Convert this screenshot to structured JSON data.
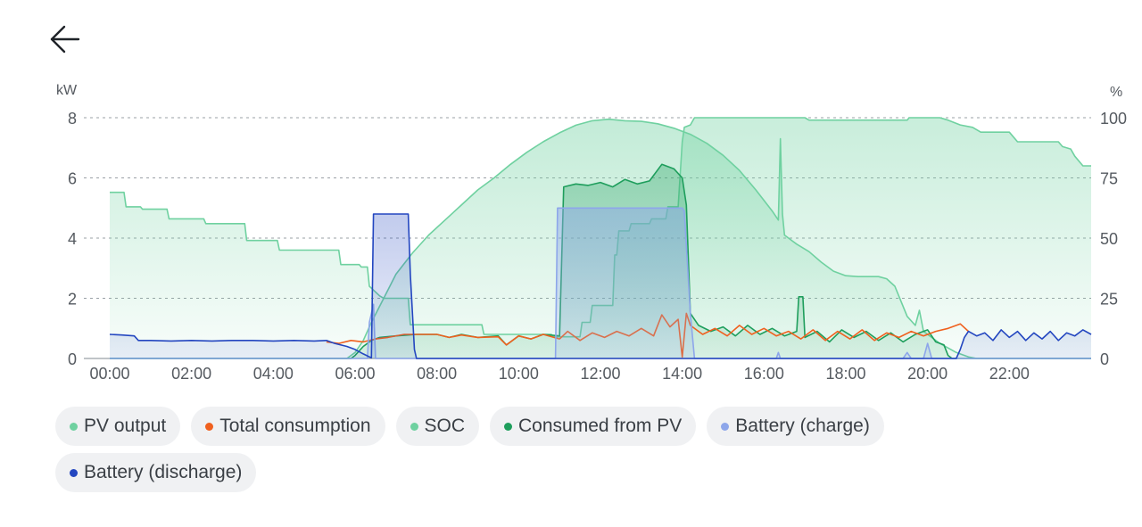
{
  "header": {
    "back_icon": "arrow-left-icon"
  },
  "chart_data": {
    "type": "area",
    "x_unit": "time of day",
    "x_ticks": [
      "00:00",
      "02:00",
      "04:00",
      "06:00",
      "08:00",
      "10:00",
      "12:00",
      "14:00",
      "16:00",
      "18:00",
      "20:00",
      "22:00"
    ],
    "y_left": {
      "unit": "kW",
      "ticks": [
        "0",
        "2",
        "4",
        "6",
        "8"
      ],
      "ylim": [
        0,
        8
      ]
    },
    "y_right": {
      "unit": "%",
      "ticks": [
        "0",
        "25",
        "50",
        "75",
        "100"
      ],
      "ylim": [
        0,
        100
      ]
    },
    "grid": "horizontal dashed",
    "legend_placement": "bottom",
    "series": [
      {
        "name": "SOC",
        "axis": "right",
        "color": "#6fd1a0",
        "style": "area-line",
        "points": [
          [
            0,
            69
          ],
          [
            0.35,
            69
          ],
          [
            0.4,
            63
          ],
          [
            0.75,
            63
          ],
          [
            0.8,
            62
          ],
          [
            1.4,
            62
          ],
          [
            1.45,
            58
          ],
          [
            2.3,
            58
          ],
          [
            2.35,
            56
          ],
          [
            3.3,
            56
          ],
          [
            3.35,
            49
          ],
          [
            4.1,
            49
          ],
          [
            4.15,
            45
          ],
          [
            5.6,
            45
          ],
          [
            5.65,
            39
          ],
          [
            6.1,
            39
          ],
          [
            6.15,
            38
          ],
          [
            6.3,
            38
          ],
          [
            6.35,
            30
          ],
          [
            6.6,
            26
          ],
          [
            6.7,
            25
          ],
          [
            7.3,
            25
          ],
          [
            7.35,
            14
          ],
          [
            9.1,
            14
          ],
          [
            9.15,
            10
          ],
          [
            10.8,
            10
          ],
          [
            10.85,
            9
          ],
          [
            11.5,
            9
          ],
          [
            11.55,
            15
          ],
          [
            11.75,
            15
          ],
          [
            11.8,
            22
          ],
          [
            12.3,
            22
          ],
          [
            12.35,
            43
          ],
          [
            12.4,
            43
          ],
          [
            12.45,
            53
          ],
          [
            12.7,
            53
          ],
          [
            12.75,
            56
          ],
          [
            13.2,
            56
          ],
          [
            13.25,
            58
          ],
          [
            13.6,
            58
          ],
          [
            13.65,
            63
          ],
          [
            13.9,
            63
          ],
          [
            14.0,
            90
          ],
          [
            14.05,
            96
          ],
          [
            14.2,
            97
          ],
          [
            14.3,
            100
          ],
          [
            17.0,
            100
          ],
          [
            17.1,
            99
          ],
          [
            19.5,
            99
          ],
          [
            19.55,
            100
          ],
          [
            20.3,
            100
          ],
          [
            20.5,
            99
          ],
          [
            20.8,
            97
          ],
          [
            21.1,
            96
          ],
          [
            21.3,
            94
          ],
          [
            22.0,
            94
          ],
          [
            22.2,
            90
          ],
          [
            23.2,
            90
          ],
          [
            23.3,
            88
          ],
          [
            23.5,
            87
          ],
          [
            23.6,
            84
          ],
          [
            23.8,
            80
          ],
          [
            24.0,
            80
          ]
        ]
      },
      {
        "name": "PV output",
        "axis": "left",
        "color": "#6fd1a0",
        "style": "area-line",
        "points": [
          [
            0,
            0
          ],
          [
            5.8,
            0
          ],
          [
            6.0,
            0.2
          ],
          [
            6.2,
            0.6
          ],
          [
            6.4,
            1.2
          ],
          [
            6.7,
            2.0
          ],
          [
            7.0,
            2.8
          ],
          [
            7.4,
            3.5
          ],
          [
            7.8,
            4.1
          ],
          [
            8.2,
            4.6
          ],
          [
            8.6,
            5.1
          ],
          [
            9.0,
            5.6
          ],
          [
            9.4,
            6.0
          ],
          [
            9.8,
            6.45
          ],
          [
            10.2,
            6.85
          ],
          [
            10.6,
            7.2
          ],
          [
            11.0,
            7.5
          ],
          [
            11.4,
            7.75
          ],
          [
            11.8,
            7.9
          ],
          [
            12.2,
            7.95
          ],
          [
            12.6,
            7.9
          ],
          [
            13.0,
            7.88
          ],
          [
            13.4,
            7.8
          ],
          [
            13.8,
            7.65
          ],
          [
            14.2,
            7.45
          ],
          [
            14.6,
            7.15
          ],
          [
            15.0,
            6.75
          ],
          [
            15.4,
            6.25
          ],
          [
            15.8,
            5.6
          ],
          [
            16.2,
            4.9
          ],
          [
            16.35,
            4.6
          ],
          [
            16.4,
            7.3
          ],
          [
            16.45,
            4.8
          ],
          [
            16.5,
            4.1
          ],
          [
            16.8,
            3.8
          ],
          [
            17.1,
            3.55
          ],
          [
            17.4,
            3.2
          ],
          [
            17.7,
            2.9
          ],
          [
            18.0,
            2.75
          ],
          [
            18.3,
            2.72
          ],
          [
            18.8,
            2.72
          ],
          [
            19.0,
            2.65
          ],
          [
            19.2,
            2.4
          ],
          [
            19.35,
            1.9
          ],
          [
            19.5,
            1.4
          ],
          [
            19.7,
            1.1
          ],
          [
            19.8,
            1.6
          ],
          [
            19.9,
            0.9
          ],
          [
            20.1,
            0.7
          ],
          [
            20.3,
            0.5
          ],
          [
            20.5,
            0.35
          ],
          [
            20.7,
            0.2
          ],
          [
            21.0,
            0.05
          ],
          [
            21.2,
            0
          ],
          [
            24.0,
            0
          ]
        ]
      },
      {
        "name": "Consumed from PV",
        "axis": "left",
        "color": "#1e9e5c",
        "style": "area-line",
        "points": [
          [
            0,
            0
          ],
          [
            5.9,
            0
          ],
          [
            6.0,
            0.1
          ],
          [
            6.2,
            0.4
          ],
          [
            6.4,
            0.6
          ],
          [
            6.6,
            0.7
          ],
          [
            7.0,
            0.75
          ],
          [
            7.5,
            0.8
          ],
          [
            8.0,
            0.8
          ],
          [
            8.3,
            0.7
          ],
          [
            8.6,
            0.8
          ],
          [
            9.0,
            0.7
          ],
          [
            9.5,
            0.75
          ],
          [
            9.7,
            0.45
          ],
          [
            10.0,
            0.75
          ],
          [
            10.3,
            0.65
          ],
          [
            10.6,
            0.8
          ],
          [
            11.0,
            0.75
          ],
          [
            11.1,
            5.7
          ],
          [
            11.4,
            5.8
          ],
          [
            11.7,
            5.75
          ],
          [
            12.0,
            5.85
          ],
          [
            12.3,
            5.7
          ],
          [
            12.6,
            5.95
          ],
          [
            12.9,
            5.8
          ],
          [
            13.2,
            5.9
          ],
          [
            13.5,
            6.45
          ],
          [
            13.8,
            6.3
          ],
          [
            14.0,
            6.0
          ],
          [
            14.1,
            5.1
          ],
          [
            14.2,
            1.5
          ],
          [
            14.4,
            1.1
          ],
          [
            14.7,
            0.9
          ],
          [
            15.0,
            1.05
          ],
          [
            15.3,
            0.75
          ],
          [
            15.6,
            1.1
          ],
          [
            15.9,
            0.8
          ],
          [
            16.2,
            1.0
          ],
          [
            16.5,
            0.75
          ],
          [
            16.8,
            0.9
          ],
          [
            16.85,
            2.05
          ],
          [
            16.95,
            2.05
          ],
          [
            17.0,
            0.7
          ],
          [
            17.3,
            0.9
          ],
          [
            17.6,
            0.55
          ],
          [
            17.9,
            0.95
          ],
          [
            18.2,
            0.7
          ],
          [
            18.5,
            0.9
          ],
          [
            18.8,
            0.6
          ],
          [
            19.1,
            0.85
          ],
          [
            19.4,
            0.55
          ],
          [
            19.7,
            0.8
          ],
          [
            20.0,
            0.95
          ],
          [
            20.2,
            0.55
          ],
          [
            20.4,
            0.45
          ],
          [
            20.5,
            0.1
          ],
          [
            20.6,
            0
          ],
          [
            24.0,
            0
          ]
        ]
      },
      {
        "name": "Total consumption",
        "axis": "left",
        "color": "#f0601e",
        "style": "line",
        "points": [
          [
            5.3,
            0.55
          ],
          [
            5.6,
            0.5
          ],
          [
            5.9,
            0.6
          ],
          [
            6.2,
            0.55
          ],
          [
            6.5,
            0.65
          ],
          [
            6.8,
            0.7
          ],
          [
            7.2,
            0.8
          ],
          [
            7.6,
            0.8
          ],
          [
            8.0,
            0.8
          ],
          [
            8.3,
            0.7
          ],
          [
            8.6,
            0.78
          ],
          [
            9.0,
            0.7
          ],
          [
            9.5,
            0.72
          ],
          [
            9.7,
            0.45
          ],
          [
            10.0,
            0.75
          ],
          [
            10.3,
            0.65
          ],
          [
            10.6,
            0.8
          ],
          [
            11.0,
            0.65
          ],
          [
            11.2,
            0.9
          ],
          [
            11.5,
            0.6
          ],
          [
            11.8,
            0.85
          ],
          [
            12.1,
            0.7
          ],
          [
            12.4,
            0.9
          ],
          [
            12.7,
            0.75
          ],
          [
            13.0,
            1.0
          ],
          [
            13.3,
            0.75
          ],
          [
            13.5,
            1.45
          ],
          [
            13.7,
            1.05
          ],
          [
            13.9,
            1.3
          ],
          [
            14.0,
            0.05
          ],
          [
            14.1,
            1.5
          ],
          [
            14.2,
            1.1
          ],
          [
            14.5,
            0.8
          ],
          [
            14.8,
            1.0
          ],
          [
            15.1,
            0.75
          ],
          [
            15.4,
            1.1
          ],
          [
            15.7,
            0.8
          ],
          [
            16.0,
            1.0
          ],
          [
            16.3,
            0.75
          ],
          [
            16.6,
            0.9
          ],
          [
            16.9,
            0.65
          ],
          [
            17.2,
            0.95
          ],
          [
            17.5,
            0.6
          ],
          [
            17.8,
            0.9
          ],
          [
            18.1,
            0.65
          ],
          [
            18.4,
            0.95
          ],
          [
            18.7,
            0.6
          ],
          [
            19.0,
            0.85
          ],
          [
            19.3,
            0.7
          ],
          [
            19.6,
            0.9
          ],
          [
            19.9,
            0.75
          ],
          [
            20.2,
            0.9
          ],
          [
            20.5,
            1.0
          ],
          [
            20.8,
            1.15
          ],
          [
            21.0,
            0.9
          ]
        ]
      },
      {
        "name": "Battery (charge)",
        "axis": "left",
        "color": "#8da6ea",
        "style": "area-line",
        "points": [
          [
            0,
            0
          ],
          [
            6.3,
            0
          ],
          [
            6.35,
            1.2
          ],
          [
            6.45,
            1.8
          ],
          [
            6.5,
            0
          ],
          [
            10.9,
            0
          ],
          [
            10.95,
            5.0
          ],
          [
            14.0,
            5.0
          ],
          [
            14.05,
            4.9
          ],
          [
            14.2,
            1.5
          ],
          [
            14.3,
            0
          ],
          [
            16.3,
            0
          ],
          [
            16.35,
            0.2
          ],
          [
            16.4,
            0
          ],
          [
            19.4,
            0
          ],
          [
            19.5,
            0.2
          ],
          [
            19.6,
            0
          ],
          [
            19.9,
            0
          ],
          [
            20.0,
            0.5
          ],
          [
            20.1,
            0
          ],
          [
            24.0,
            0
          ]
        ]
      },
      {
        "name": "Battery (discharge)",
        "axis": "left",
        "color": "#2346c0",
        "style": "area-line",
        "points": [
          [
            0,
            0.8
          ],
          [
            0.3,
            0.78
          ],
          [
            0.6,
            0.75
          ],
          [
            0.7,
            0.6
          ],
          [
            1.0,
            0.6
          ],
          [
            1.5,
            0.58
          ],
          [
            2.0,
            0.6
          ],
          [
            2.5,
            0.58
          ],
          [
            3.0,
            0.6
          ],
          [
            3.5,
            0.6
          ],
          [
            4.0,
            0.58
          ],
          [
            4.5,
            0.6
          ],
          [
            5.0,
            0.58
          ],
          [
            5.3,
            0.6
          ],
          [
            5.5,
            0.5
          ],
          [
            5.8,
            0.4
          ],
          [
            6.0,
            0.3
          ],
          [
            6.2,
            0.15
          ],
          [
            6.4,
            0.02
          ],
          [
            6.45,
            4.8
          ],
          [
            7.3,
            4.8
          ],
          [
            7.35,
            2.8
          ],
          [
            7.45,
            0.3
          ],
          [
            7.5,
            0
          ],
          [
            20.7,
            0
          ],
          [
            20.8,
            0.3
          ],
          [
            20.9,
            0.7
          ],
          [
            21.0,
            0.9
          ],
          [
            21.2,
            0.75
          ],
          [
            21.4,
            0.85
          ],
          [
            21.6,
            0.6
          ],
          [
            21.8,
            0.95
          ],
          [
            22.0,
            0.7
          ],
          [
            22.2,
            0.9
          ],
          [
            22.4,
            0.6
          ],
          [
            22.6,
            0.85
          ],
          [
            22.8,
            0.65
          ],
          [
            23.0,
            0.9
          ],
          [
            23.2,
            0.6
          ],
          [
            23.4,
            0.85
          ],
          [
            23.6,
            0.75
          ],
          [
            23.8,
            0.95
          ],
          [
            24.0,
            0.8
          ]
        ]
      }
    ]
  },
  "legend": [
    {
      "label": "PV output",
      "color": "#6fd1a0"
    },
    {
      "label": "Total consumption",
      "color": "#f0601e"
    },
    {
      "label": "SOC",
      "color": "#6fd1a0"
    },
    {
      "label": "Consumed from PV",
      "color": "#1e9e5c"
    },
    {
      "label": "Battery (charge)",
      "color": "#8da6ea"
    },
    {
      "label": "Battery (discharge)",
      "color": "#2346c0"
    }
  ]
}
